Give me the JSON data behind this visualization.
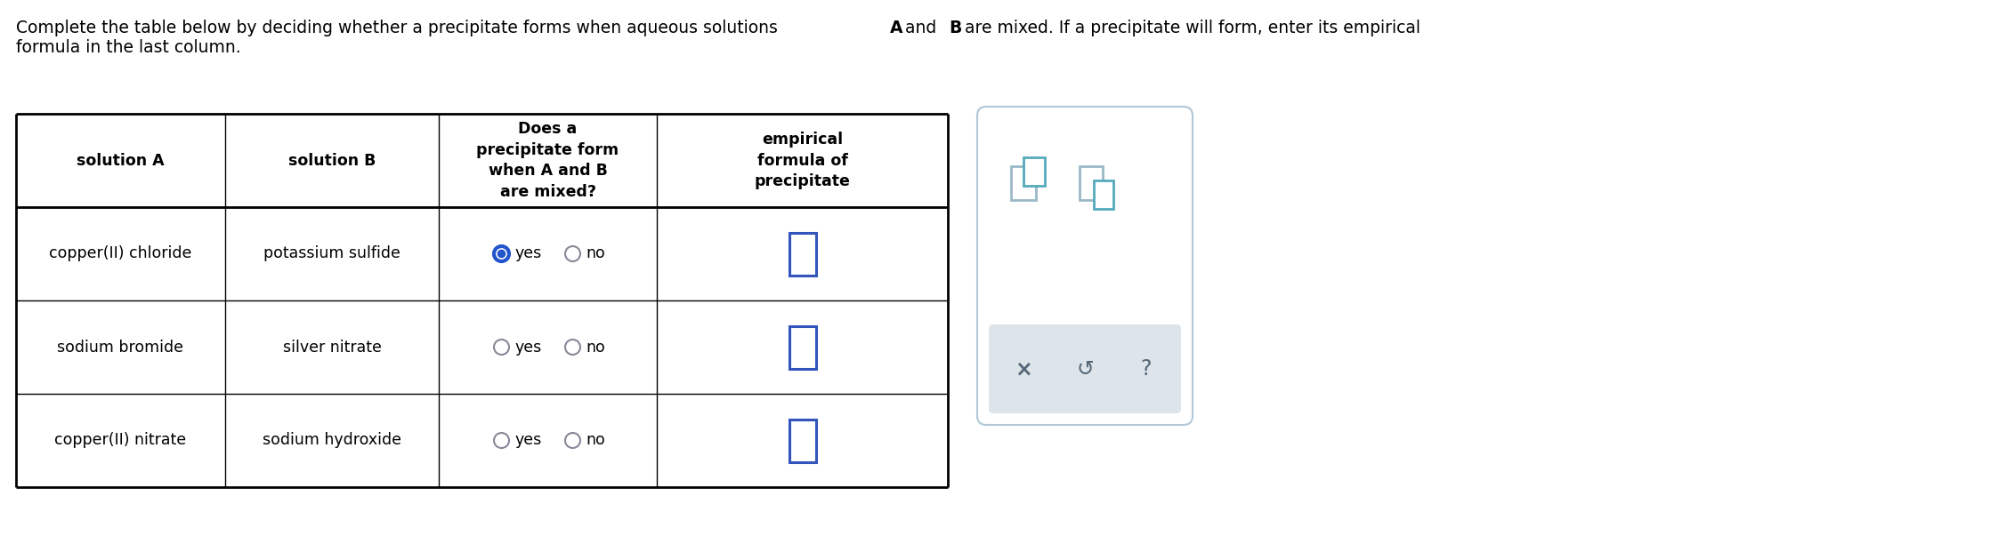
{
  "background_color": "#ffffff",
  "black": "#000000",
  "blue": "#3355bb",
  "blue_radio": "#2255cc",
  "teal": "#55aabb",
  "gray_panel_border": "#b0c8d8",
  "gray_bar": "#dde4ea",
  "gray_text": "#555566",
  "col_headers": [
    "solution A",
    "solution B",
    "Does a\nprecipitate form\nwhen A and B\nare mixed?",
    "empirical\nformula of\nprecipitate"
  ],
  "rows": [
    [
      "copper(II) chloride",
      "potassium sulfide"
    ],
    [
      "sodium bromide",
      "silver nitrate"
    ],
    [
      "copper(II) nitrate",
      "sodium hydroxide"
    ]
  ],
  "radio_yes_selected": [
    true,
    false,
    false
  ],
  "title_line1_plain": "Complete the table below by deciding whether a precipitate forms when aqueous solutions ",
  "title_bold_A": "A",
  "title_line1_and": " and ",
  "title_bold_B": "B",
  "title_line1_end": " are mixed. If a precipitate will form, enter its empirical",
  "title_line2": "formula in the last column."
}
